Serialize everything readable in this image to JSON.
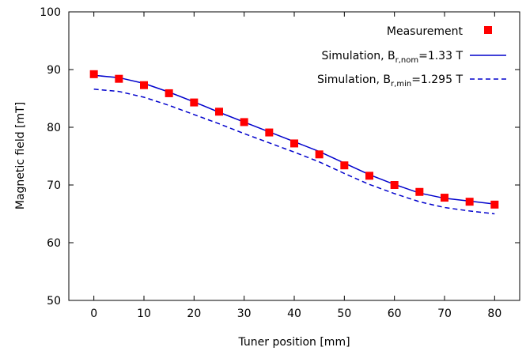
{
  "chart_data": {
    "type": "scatter",
    "xlabel": "Tuner position [mm]",
    "ylabel": "Magnetic field [mT]",
    "xlim": [
      -5,
      85
    ],
    "ylim": [
      50,
      100
    ],
    "xticks": [
      "0",
      "10",
      "20",
      "30",
      "40",
      "50",
      "60",
      "70",
      "80"
    ],
    "yticks": [
      "50",
      "60",
      "70",
      "80",
      "90",
      "100"
    ],
    "grid": false,
    "legend_position": "top-right",
    "series": [
      {
        "name": "Measurement",
        "style": "square-markers",
        "color": "#ff0000",
        "x": [
          0,
          5,
          10,
          15,
          20,
          25,
          30,
          35,
          40,
          45,
          50,
          55,
          60,
          65,
          70,
          75,
          80
        ],
        "y": [
          89.2,
          88.4,
          87.3,
          85.9,
          84.3,
          82.7,
          80.9,
          79.1,
          77.2,
          75.3,
          73.4,
          71.6,
          70.0,
          68.8,
          67.8,
          67.1,
          66.6
        ]
      },
      {
        "name_main": "Simulation, B",
        "name_sub": "r,nom",
        "name_tail": "=1.33 T",
        "style": "solid-line",
        "color": "#0000cc",
        "x": [
          0,
          5,
          10,
          15,
          20,
          25,
          30,
          35,
          40,
          45,
          50,
          55,
          60,
          65,
          70,
          75,
          80
        ],
        "y": [
          89.0,
          88.6,
          87.6,
          86.1,
          84.4,
          82.6,
          80.9,
          79.2,
          77.5,
          75.8,
          73.8,
          71.8,
          70.1,
          68.6,
          67.7,
          67.2,
          66.7
        ]
      },
      {
        "name_main": "Simulation, B",
        "name_sub": "r,min",
        "name_tail": "=1.295 T",
        "style": "dashed-line",
        "color": "#0000cc",
        "x": [
          0,
          5,
          10,
          15,
          20,
          25,
          30,
          35,
          40,
          45,
          50,
          55,
          60,
          65,
          70,
          75,
          80
        ],
        "y": [
          86.6,
          86.2,
          85.2,
          83.8,
          82.2,
          80.6,
          78.9,
          77.3,
          75.7,
          74.0,
          72.0,
          70.1,
          68.5,
          67.1,
          66.1,
          65.5,
          65.0
        ]
      }
    ]
  }
}
